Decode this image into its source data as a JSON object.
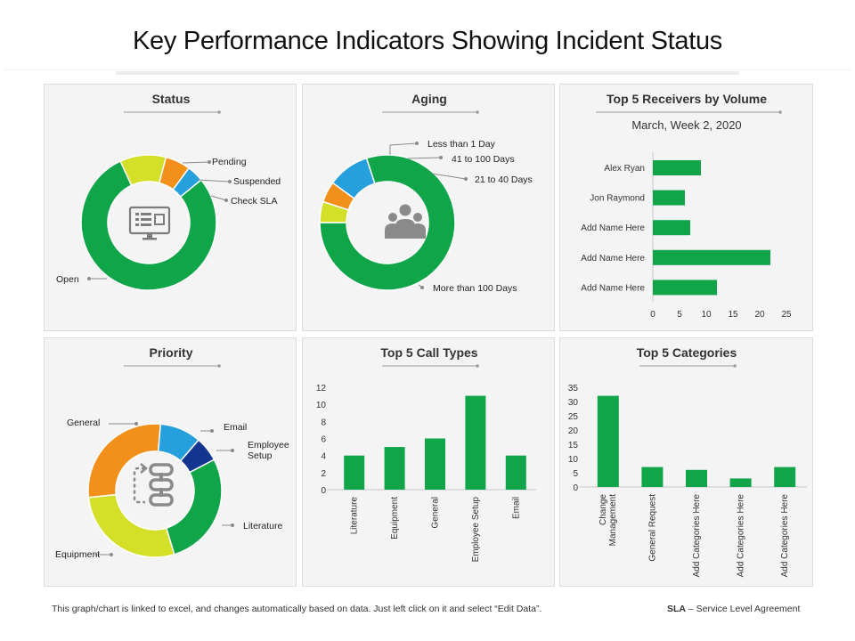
{
  "title": "Key Performance Indicators Showing Incident Status",
  "footer": {
    "note": "This graph/chart is linked to excel,  and changes automatically based on data. Just left click on it and select “Edit Data”.",
    "sla_abbr": "SLA",
    "sla_def": " – Service Level Agreement"
  },
  "icons": {
    "status_center": "monitor-checklist-icon",
    "aging_center": "people-group-icon",
    "priority_center": "workflow-chain-icon"
  },
  "colors": {
    "green": "#11a54a",
    "yellow": "#d4df28",
    "orange": "#f3901c",
    "blue": "#25a0dc",
    "navy": "#12358f",
    "connector": "#8a8a8a"
  },
  "panels": {
    "status": "Status",
    "aging": "Aging",
    "receivers": "Top 5 Receivers by Volume",
    "receivers_sub": "March, Week 2, 2020",
    "priority": "Priority",
    "call_types": "Top 5 Call Types",
    "categories": "Top 5 Categories"
  },
  "chart_data": [
    {
      "id": "status",
      "type": "pie",
      "title": "Status",
      "slices": [
        {
          "label": "Open",
          "value": 79,
          "color": "#11a54a"
        },
        {
          "label": "Pending",
          "value": 11,
          "color": "#d4df28"
        },
        {
          "label": "Suspended",
          "value": 6,
          "color": "#f3901c"
        },
        {
          "label": "Check SLA",
          "value": 4,
          "color": "#25a0dc"
        }
      ]
    },
    {
      "id": "aging",
      "type": "pie",
      "title": "Aging",
      "slices": [
        {
          "label": "More than 100 Days",
          "value": 80,
          "color": "#11a54a"
        },
        {
          "label": "Less than 1 Day",
          "value": 5,
          "color": "#d4df28"
        },
        {
          "label": "41 to 100 Days",
          "value": 5,
          "color": "#f3901c"
        },
        {
          "label": "21 to 40 Days",
          "value": 10,
          "color": "#25a0dc"
        }
      ]
    },
    {
      "id": "receivers",
      "type": "bar",
      "orientation": "horizontal",
      "title": "Top 5 Receivers by Volume",
      "subtitle": "March, Week 2, 2020",
      "categories": [
        "Alex Ryan",
        "Jon Raymond",
        "Add Name Here",
        "Add Name Here",
        "Add Name Here"
      ],
      "values": [
        9,
        6,
        7,
        22,
        12
      ],
      "xlim": [
        0,
        25
      ],
      "xticks": [
        0,
        5,
        10,
        15,
        20,
        25
      ]
    },
    {
      "id": "priority",
      "type": "pie",
      "title": "Priority",
      "slices": [
        {
          "label": "General",
          "value": 28,
          "color": "#f3901c"
        },
        {
          "label": "Email",
          "value": 10,
          "color": "#25a0dc"
        },
        {
          "label": "Employee Setup",
          "value": 6,
          "color": "#12358f"
        },
        {
          "label": "Literature",
          "value": 28,
          "color": "#11a54a"
        },
        {
          "label": "Equipment",
          "value": 28,
          "color": "#d4df28"
        }
      ]
    },
    {
      "id": "call_types",
      "type": "bar",
      "title": "Top 5 Call Types",
      "categories": [
        "Literature",
        "Equipment",
        "General",
        "Employee Setup",
        "Email"
      ],
      "values": [
        4,
        5,
        6,
        11,
        4
      ],
      "ylim": [
        0,
        12
      ],
      "yticks": [
        0,
        2,
        4,
        6,
        8,
        10,
        12
      ]
    },
    {
      "id": "categories",
      "type": "bar",
      "title": "Top 5 Categories",
      "categories": [
        "Change Management",
        "General Request",
        "Add Categories Here",
        "Add Categories Here",
        "Add Categories Here"
      ],
      "values": [
        32,
        7,
        6,
        3,
        7
      ],
      "ylim": [
        0,
        35
      ],
      "yticks": [
        0,
        5,
        10,
        15,
        20,
        25,
        30,
        35
      ]
    }
  ]
}
